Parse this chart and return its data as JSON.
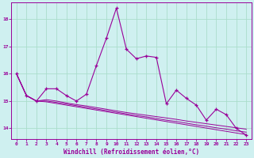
{
  "xlabel": "Windchill (Refroidissement éolien,°C)",
  "background_color": "#cff0f0",
  "line_color": "#990099",
  "grid_color": "#aaddcc",
  "xlim": [
    -0.5,
    23.5
  ],
  "ylim": [
    13.6,
    18.6
  ],
  "yticks": [
    14,
    15,
    16,
    17,
    18
  ],
  "xticks": [
    0,
    1,
    2,
    3,
    4,
    5,
    6,
    7,
    8,
    9,
    10,
    11,
    12,
    13,
    14,
    15,
    16,
    17,
    18,
    19,
    20,
    21,
    22,
    23
  ],
  "series0": [
    16.0,
    15.2,
    15.0,
    15.45,
    15.45,
    15.2,
    15.0,
    15.25,
    16.3,
    17.3,
    18.4,
    16.9,
    16.55,
    16.65,
    16.6,
    14.9,
    15.4,
    15.1,
    14.85,
    14.3,
    14.7,
    14.5,
    14.0,
    13.75
  ],
  "series1": [
    16.0,
    15.2,
    15.0,
    15.05,
    15.0,
    14.93,
    14.87,
    14.82,
    14.76,
    14.7,
    14.64,
    14.58,
    14.53,
    14.48,
    14.43,
    14.38,
    14.33,
    14.27,
    14.22,
    14.17,
    14.12,
    14.07,
    14.02,
    13.97
  ],
  "series2": [
    16.0,
    15.2,
    15.0,
    15.0,
    14.95,
    14.89,
    14.83,
    14.77,
    14.71,
    14.65,
    14.59,
    14.53,
    14.47,
    14.42,
    14.36,
    14.3,
    14.25,
    14.19,
    14.13,
    14.08,
    14.02,
    13.97,
    13.91,
    13.86
  ],
  "series3": [
    16.0,
    15.2,
    15.0,
    14.97,
    14.91,
    14.85,
    14.79,
    14.73,
    14.67,
    14.61,
    14.55,
    14.49,
    14.43,
    14.37,
    14.31,
    14.25,
    14.19,
    14.13,
    14.07,
    14.01,
    13.95,
    13.89,
    13.83,
    13.77
  ]
}
